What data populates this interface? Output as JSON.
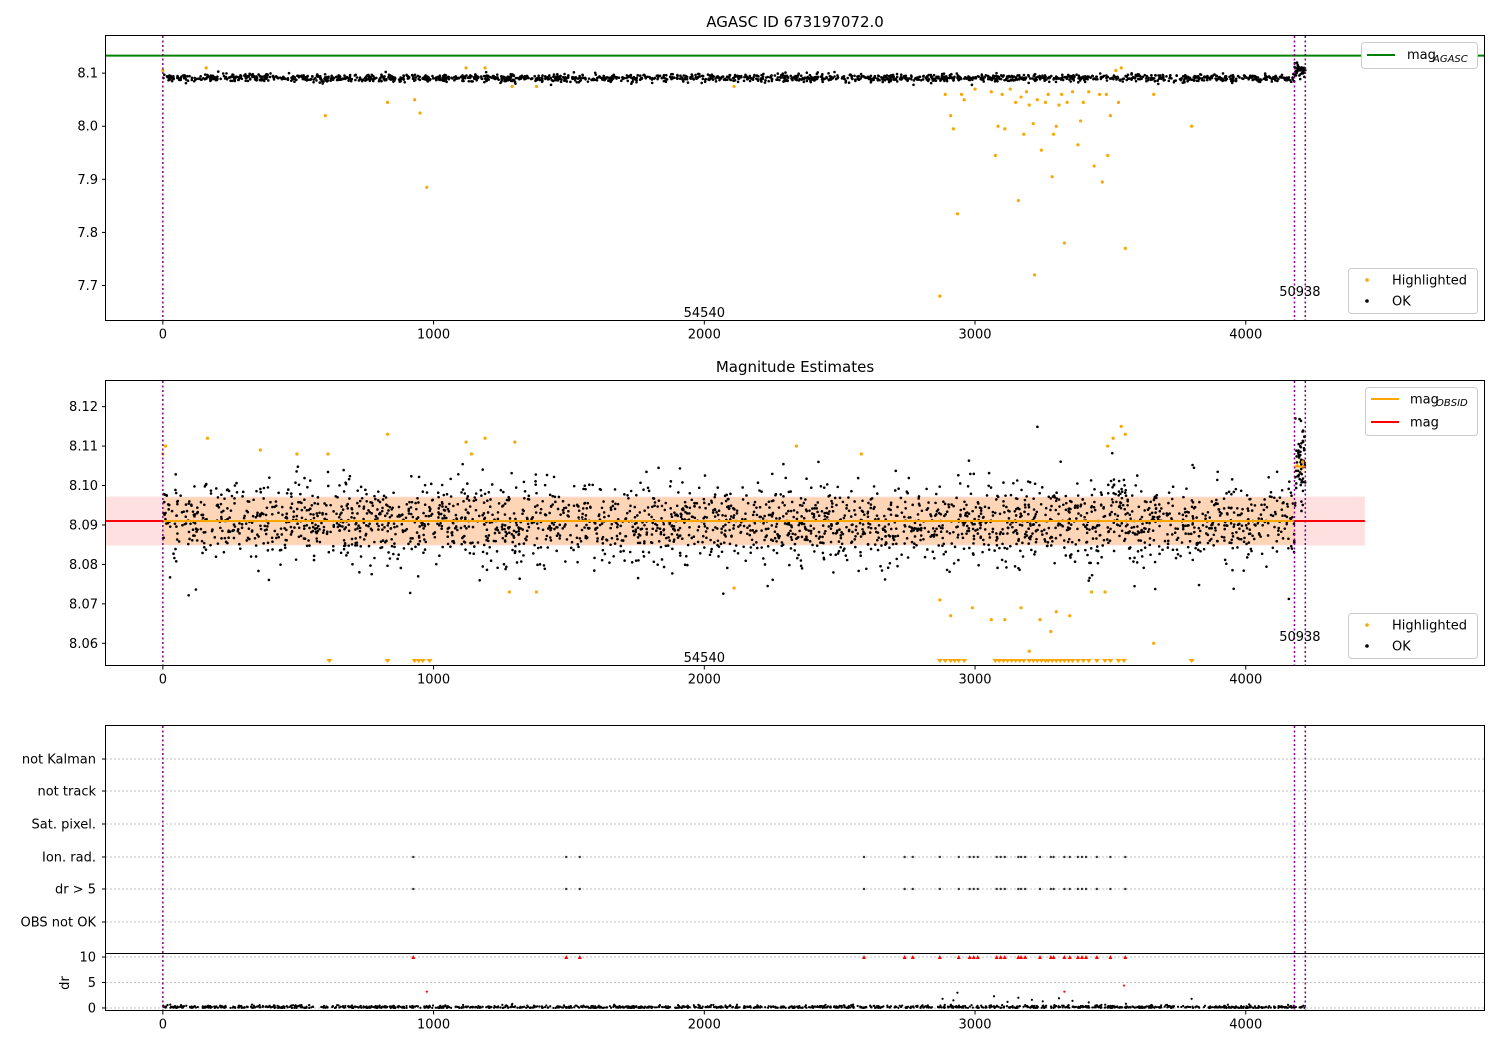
{
  "chart_data": [
    {
      "type": "scatter",
      "title": "AGASC ID 673197072.0",
      "xlim": [
        -210,
        4880
      ],
      "ylim": [
        7.635,
        8.17
      ],
      "xticks": [
        "0",
        "1000",
        "2000",
        "3000",
        "4000"
      ],
      "yticks": [
        "7.7",
        "7.8",
        "7.9",
        "8.0",
        "8.1"
      ],
      "mag_agasc": 8.133,
      "obs_boundaries": [
        0,
        4180,
        4220
      ],
      "obs_labels": [
        {
          "text": "54540",
          "x": 2000,
          "y": 7.65
        },
        {
          "text": "50938",
          "x": 4200,
          "y": 7.69
        }
      ],
      "legend_lines": [
        {
          "label": "mag",
          "sub": "AGASC",
          "color": "#008000"
        }
      ],
      "legend_points": [
        {
          "label": "Highlighted",
          "color": "#ffa500"
        },
        {
          "label": "OK",
          "color": "#000000"
        }
      ],
      "ok_band": {
        "center": 8.091,
        "spread": 0.0035
      },
      "highlighted": [
        [
          0,
          8.105
        ],
        [
          160,
          8.11
        ],
        [
          600,
          8.02
        ],
        [
          830,
          8.045
        ],
        [
          930,
          8.05
        ],
        [
          950,
          8.025
        ],
        [
          975,
          7.885
        ],
        [
          1120,
          8.11
        ],
        [
          1190,
          8.11
        ],
        [
          1290,
          8.075
        ],
        [
          1380,
          8.075
        ],
        [
          2110,
          8.075
        ],
        [
          2870,
          7.68
        ],
        [
          2890,
          8.06
        ],
        [
          2910,
          8.02
        ],
        [
          2920,
          7.995
        ],
        [
          2935,
          7.835
        ],
        [
          2950,
          8.06
        ],
        [
          2960,
          8.05
        ],
        [
          3000,
          8.07
        ],
        [
          3060,
          8.065
        ],
        [
          3075,
          7.945
        ],
        [
          3085,
          8.0
        ],
        [
          3100,
          8.06
        ],
        [
          3110,
          7.995
        ],
        [
          3130,
          8.07
        ],
        [
          3150,
          8.045
        ],
        [
          3160,
          7.86
        ],
        [
          3170,
          8.055
        ],
        [
          3180,
          7.985
        ],
        [
          3190,
          8.065
        ],
        [
          3200,
          8.04
        ],
        [
          3215,
          8.005
        ],
        [
          3220,
          7.72
        ],
        [
          3230,
          8.05
        ],
        [
          3245,
          7.955
        ],
        [
          3260,
          8.045
        ],
        [
          3270,
          8.06
        ],
        [
          3285,
          7.905
        ],
        [
          3290,
          7.985
        ],
        [
          3300,
          8.0
        ],
        [
          3310,
          8.04
        ],
        [
          3320,
          8.06
        ],
        [
          3330,
          7.78
        ],
        [
          3340,
          8.045
        ],
        [
          3360,
          8.065
        ],
        [
          3380,
          7.965
        ],
        [
          3390,
          8.01
        ],
        [
          3400,
          8.045
        ],
        [
          3420,
          8.065
        ],
        [
          3440,
          7.925
        ],
        [
          3460,
          8.06
        ],
        [
          3470,
          7.895
        ],
        [
          3485,
          8.06
        ],
        [
          3490,
          7.945
        ],
        [
          3500,
          8.02
        ],
        [
          3520,
          8.105
        ],
        [
          3530,
          8.045
        ],
        [
          3540,
          8.11
        ],
        [
          3555,
          7.77
        ],
        [
          3660,
          8.06
        ],
        [
          3800,
          8.0
        ]
      ],
      "x": [
        0,
        4220
      ]
    },
    {
      "type": "scatter",
      "title": "Magnitude Estimates",
      "xlim": [
        -210,
        4880
      ],
      "ylim": [
        8.0545,
        8.1265
      ],
      "xticks": [
        "0",
        "1000",
        "2000",
        "3000",
        "4000"
      ],
      "yticks": [
        "8.06",
        "8.07",
        "8.08",
        "8.09",
        "8.10",
        "8.11",
        "8.12"
      ],
      "mag": 8.091,
      "mag_band": [
        8.0848,
        8.0972
      ],
      "mag_obsid": [
        {
          "x": [
            0,
            4180
          ],
          "y": 8.091,
          "band": [
            8.085,
            8.097
          ]
        },
        {
          "x": [
            4180,
            4220
          ],
          "y": 8.1048,
          "band": [
            8.103,
            8.107
          ]
        }
      ],
      "obs_labels": [
        {
          "text": "54540",
          "x": 2000,
          "y": 8.0565
        },
        {
          "text": "50938",
          "x": 4200,
          "y": 8.0618
        }
      ],
      "legend_lines": [
        {
          "label": "mag",
          "sub": "OBSID",
          "color": "#ffa500"
        },
        {
          "label": "mag",
          "sub": "",
          "color": "#ff0000"
        }
      ],
      "legend_points": [
        {
          "label": "Highlighted",
          "color": "#ffa500"
        },
        {
          "label": "OK",
          "color": "#000000"
        }
      ],
      "ok_band": {
        "center": 8.0905,
        "spread": 0.0052
      },
      "highlighted": [
        [
          0,
          8.108
        ],
        [
          10,
          8.11
        ],
        [
          165,
          8.112
        ],
        [
          360,
          8.109
        ],
        [
          495,
          8.108
        ],
        [
          610,
          8.108
        ],
        [
          830,
          8.113
        ],
        [
          1120,
          8.111
        ],
        [
          1140,
          8.108
        ],
        [
          1190,
          8.112
        ],
        [
          1280,
          8.073
        ],
        [
          1300,
          8.111
        ],
        [
          1380,
          8.073
        ],
        [
          2110,
          8.074
        ],
        [
          2340,
          8.11
        ],
        [
          2580,
          8.108
        ],
        [
          2870,
          8.071
        ],
        [
          2910,
          8.067
        ],
        [
          2990,
          8.069
        ],
        [
          3060,
          8.066
        ],
        [
          3110,
          8.066
        ],
        [
          3170,
          8.069
        ],
        [
          3200,
          8.058
        ],
        [
          3240,
          8.066
        ],
        [
          3280,
          8.063
        ],
        [
          3300,
          8.068
        ],
        [
          3350,
          8.067
        ],
        [
          3430,
          8.073
        ],
        [
          3480,
          8.073
        ],
        [
          3490,
          8.11
        ],
        [
          3510,
          8.112
        ],
        [
          3540,
          8.115
        ],
        [
          3555,
          8.113
        ],
        [
          3660,
          8.06
        ],
        [
          4190,
          8.105
        ],
        [
          4210,
          8.106
        ]
      ],
      "below_markers": [
        615,
        830,
        930,
        945,
        960,
        985,
        2870,
        2890,
        2910,
        2925,
        2940,
        2960,
        3075,
        3090,
        3105,
        3120,
        3135,
        3150,
        3165,
        3180,
        3200,
        3215,
        3230,
        3245,
        3260,
        3270,
        3285,
        3300,
        3315,
        3330,
        3345,
        3360,
        3380,
        3400,
        3420,
        3450,
        3480,
        3500,
        3530,
        3550,
        3800
      ]
    },
    {
      "type": "scatter",
      "title": "",
      "xlim": [
        -210,
        4880
      ],
      "xticks": [
        "0",
        "1000",
        "2000",
        "3000",
        "4000"
      ],
      "flag_rows": [
        "not Kalman",
        "not track",
        "Sat. pixel.",
        "Ion. rad.",
        "dr > 5",
        "OBS not OK"
      ],
      "flag_points": {
        "Ion. rad.": [
          925,
          1490,
          1540,
          2590,
          2740,
          2770,
          2870,
          2940,
          2980,
          2995,
          3010,
          3080,
          3095,
          3110,
          3160,
          3170,
          3185,
          3240,
          3280,
          3290,
          3330,
          3350,
          3380,
          3395,
          3410,
          3450,
          3500,
          3555
        ],
        "dr > 5": [
          925,
          1490,
          1540,
          2590,
          2740,
          2770,
          2870,
          2940,
          2980,
          2995,
          3010,
          3080,
          3095,
          3110,
          3160,
          3170,
          3185,
          3240,
          3280,
          3290,
          3330,
          3350,
          3380,
          3395,
          3410,
          3450,
          3500,
          3555
        ]
      },
      "dr_ylabel": "dr",
      "dr_yticks": [
        "0",
        "5",
        "10"
      ],
      "dr_ylim": [
        -0.4,
        10.4
      ],
      "dr_clipped": [
        925,
        1490,
        1540,
        2590,
        2740,
        2770,
        2870,
        2940,
        2980,
        2995,
        3010,
        3080,
        3095,
        3110,
        3160,
        3170,
        3185,
        3240,
        3280,
        3290,
        3330,
        3350,
        3380,
        3395,
        3410,
        3450,
        3500,
        3555
      ],
      "dr_outliers": [
        [
          975,
          3.2
        ],
        [
          2880,
          1.8
        ],
        [
          2920,
          1.5
        ],
        [
          2935,
          3.0
        ],
        [
          3070,
          2.3
        ],
        [
          3120,
          1.2
        ],
        [
          3160,
          2.0
        ],
        [
          3210,
          1.6
        ],
        [
          3250,
          1.3
        ],
        [
          3310,
          1.9
        ],
        [
          3330,
          3.2
        ],
        [
          3360,
          1.4
        ],
        [
          3420,
          1.1
        ],
        [
          3550,
          4.4
        ],
        [
          3800,
          1.8
        ]
      ]
    }
  ]
}
